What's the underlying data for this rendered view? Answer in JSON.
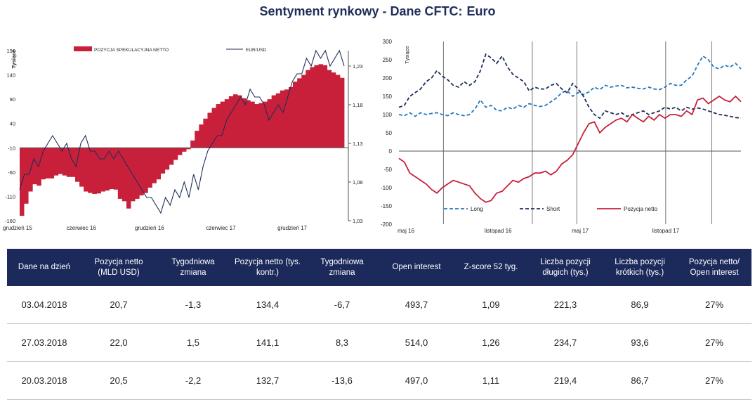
{
  "title": "Sentyment rynkowy - Dane CFTC:",
  "title_currency": "Euro",
  "colors": {
    "navy": "#1c2a5b",
    "bar_red": "#c8203a",
    "line_navy": "#1f2d5a",
    "long_blue": "#1f78c1",
    "short_navy": "#1f2d5a",
    "net_red": "#c8203a"
  },
  "chart_data": [
    {
      "type": "bar",
      "ylabel": "Tysiące",
      "y2label": "",
      "x_tick_labels": [
        "grudzień 15",
        "czerwiec 16",
        "grudzień 16",
        "czerwiec 17",
        "grudzień 17"
      ],
      "y_ticks": [
        190,
        140,
        90,
        40,
        -10,
        -60,
        -110,
        -160
      ],
      "ylim": [
        -160,
        190
      ],
      "y2_ticks": [
        "1,23",
        "1,18",
        "1,13",
        "1,08",
        "1,03"
      ],
      "y2lim": [
        1.03,
        1.25
      ],
      "grid": false,
      "legend_position": "top",
      "series": [
        {
          "name": "POZYCJA SPEKULACYJNA NETTO",
          "kind": "bar",
          "values": [
            -150,
            -125,
            -100,
            -85,
            -88,
            -75,
            -73,
            -73,
            -67,
            -64,
            -67,
            -70,
            -70,
            -80,
            -90,
            -100,
            -103,
            -105,
            -104,
            -100,
            -98,
            -95,
            -96,
            -115,
            -120,
            -135,
            -120,
            -115,
            -108,
            -103,
            -92,
            -83,
            -75,
            -63,
            -55,
            -45,
            -35,
            -25,
            -18,
            -13,
            5,
            25,
            38,
            50,
            62,
            72,
            80,
            85,
            90,
            96,
            100,
            98,
            92,
            88,
            85,
            80,
            82,
            85,
            90,
            98,
            102,
            108,
            110,
            115,
            126,
            133,
            140,
            150,
            156,
            160,
            162,
            160,
            150,
            145,
            140,
            134
          ]
        },
        {
          "name": "EUR/USD",
          "kind": "line",
          "axis": "right",
          "values": [
            1.07,
            1.09,
            1.09,
            1.11,
            1.1,
            1.12,
            1.13,
            1.14,
            1.13,
            1.12,
            1.13,
            1.11,
            1.1,
            1.13,
            1.14,
            1.12,
            1.12,
            1.11,
            1.11,
            1.12,
            1.11,
            1.12,
            1.11,
            1.1,
            1.09,
            1.08,
            1.07,
            1.06,
            1.06,
            1.05,
            1.04,
            1.06,
            1.05,
            1.07,
            1.06,
            1.08,
            1.06,
            1.09,
            1.07,
            1.1,
            1.12,
            1.13,
            1.14,
            1.14,
            1.16,
            1.17,
            1.18,
            1.19,
            1.18,
            1.2,
            1.19,
            1.19,
            1.18,
            1.16,
            1.17,
            1.18,
            1.17,
            1.19,
            1.21,
            1.22,
            1.22,
            1.24,
            1.23,
            1.25,
            1.24,
            1.25,
            1.23,
            1.24,
            1.25,
            1.23
          ]
        }
      ]
    },
    {
      "type": "line",
      "ylabel": "Tysiące",
      "x_tick_labels": [
        "maj 16",
        "listopad 16",
        "maj 17",
        "listopad 17"
      ],
      "y_ticks": [
        300,
        250,
        200,
        150,
        100,
        50,
        0,
        -50,
        -100,
        -150,
        -200
      ],
      "ylim": [
        -200,
        300
      ],
      "grid": false,
      "legend_position": "bottom",
      "series": [
        {
          "name": "Long",
          "style": "dashed",
          "values": [
            100,
            97,
            105,
            95,
            105,
            100,
            103,
            105,
            100,
            97,
            105,
            100,
            97,
            100,
            115,
            140,
            120,
            125,
            112,
            110,
            120,
            115,
            125,
            120,
            130,
            125,
            122,
            125,
            135,
            145,
            160,
            165,
            150,
            160,
            155,
            162,
            175,
            168,
            180,
            175,
            178,
            180,
            173,
            175,
            172,
            170,
            175,
            170,
            168,
            175,
            185,
            180,
            180,
            195,
            205,
            235,
            260,
            250,
            230,
            225,
            235,
            230,
            240,
            225
          ]
        },
        {
          "name": "Short",
          "style": "dashed",
          "values": [
            120,
            125,
            150,
            160,
            170,
            190,
            200,
            220,
            205,
            195,
            180,
            175,
            190,
            180,
            190,
            220,
            265,
            255,
            240,
            260,
            230,
            210,
            200,
            190,
            165,
            175,
            170,
            170,
            180,
            185,
            170,
            160,
            185,
            170,
            150,
            120,
            100,
            90,
            110,
            105,
            100,
            105,
            95,
            100,
            105,
            110,
            100,
            105,
            110,
            120,
            115,
            120,
            110,
            120,
            115,
            118,
            115,
            110,
            105,
            100,
            98,
            95,
            92,
            90
          ]
        },
        {
          "name": "Pozycja netto",
          "style": "solid",
          "values": [
            -20,
            -30,
            -60,
            -70,
            -80,
            -90,
            -105,
            -115,
            -100,
            -90,
            -80,
            -85,
            -90,
            -95,
            -115,
            -130,
            -140,
            -135,
            -115,
            -110,
            -95,
            -80,
            -85,
            -75,
            -70,
            -60,
            -60,
            -55,
            -65,
            -55,
            -35,
            -25,
            -10,
            20,
            50,
            75,
            80,
            50,
            65,
            75,
            85,
            90,
            80,
            100,
            90,
            80,
            95,
            85,
            100,
            90,
            100,
            100,
            95,
            110,
            100,
            140,
            145,
            130,
            140,
            150,
            140,
            135,
            150,
            135
          ]
        }
      ]
    }
  ],
  "table": {
    "headers": [
      "Dane na dzień",
      "Pozycja netto (MLD USD)",
      "Tygodniowa zmiana",
      "Pozycja netto (tys. kontr.)",
      "Tygodniowa zmiana",
      "Open interest",
      "Z-score 52 tyg.",
      "Liczba pozycji długich (tys.)",
      "Liczba pozycji krótkich (tys.)",
      "Pozycja netto/ Open interest"
    ],
    "rows": [
      [
        "03.04.2018",
        "20,7",
        "-1,3",
        "134,4",
        "-6,7",
        "493,7",
        "1,09",
        "221,3",
        "86,9",
        "27%"
      ],
      [
        "27.03.2018",
        "22,0",
        "1,5",
        "141,1",
        "8,3",
        "514,0",
        "1,26",
        "234,7",
        "93,6",
        "27%"
      ],
      [
        "20.03.2018",
        "20,5",
        "-2,2",
        "132,7",
        "-13,6",
        "497,0",
        "1,11",
        "219,4",
        "86,7",
        "27%"
      ]
    ]
  }
}
